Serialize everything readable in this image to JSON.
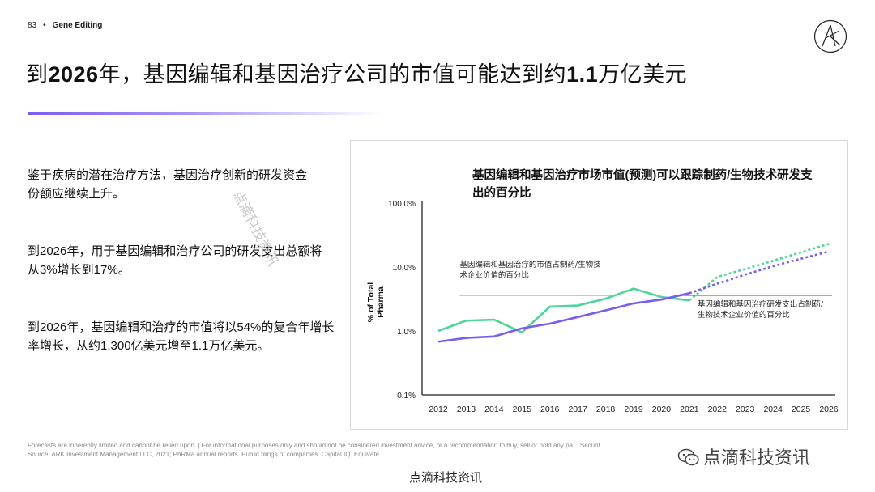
{
  "header": {
    "page_number": "83",
    "separator": "•",
    "section": "Gene Editing"
  },
  "title": {
    "prefix": "到",
    "year": "2026",
    "middle": "年，基因编辑和基因治疗公司的市值可能达到约",
    "amount": "1.1",
    "suffix": "万亿美元"
  },
  "paragraphs": [
    "鉴于疾病的潜在治疗方法，基因治疗创新的研发资金份额应继续上升。",
    "到2026年，用于基因编辑和治疗公司的研发支出总额将从3%增长到17%。",
    "到2026年，基因编辑和治疗的市值将以54%的复合年增长率增长，从约1,300亿美元增至1.1万亿美元。"
  ],
  "colors": {
    "accent": "#7b5cf0",
    "market_cap_series": "#4fd49a",
    "rd_series": "#7b5cf0"
  },
  "chart_data": {
    "type": "line",
    "title": "基因编辑和基因治疗市场市值(预测)可以跟踪制药/生物技术研发支出的百分比",
    "ylabel": "% of Total Pharma",
    "yscale": "log",
    "ylim": [
      0.1,
      100
    ],
    "yticks": [
      {
        "value": 100,
        "label": "100.0%"
      },
      {
        "value": 10,
        "label": "10.0%"
      },
      {
        "value": 1,
        "label": "1.0%"
      },
      {
        "value": 0.1,
        "label": "0.1%"
      }
    ],
    "x": [
      2012,
      2013,
      2014,
      2015,
      2016,
      2017,
      2018,
      2019,
      2020,
      2021,
      2022,
      2023,
      2024,
      2025,
      2026
    ],
    "forecast_start": 2021,
    "series": [
      {
        "name": "基因编辑和基因治疗的市值占制药/生物技术企业价值的百分比",
        "color": "#4fd49a",
        "values": [
          1.0,
          1.45,
          1.5,
          0.95,
          2.4,
          2.5,
          3.2,
          4.6,
          3.4,
          3.0,
          7.0,
          9.3,
          12.5,
          17.0,
          23.0
        ]
      },
      {
        "name": "基因编辑和基因治疗研发支出占制药/生物技术企业价值的百分比",
        "color": "#7b5cf0",
        "values": [
          0.68,
          0.78,
          0.82,
          1.1,
          1.3,
          1.65,
          2.1,
          2.7,
          3.1,
          3.9,
          5.5,
          7.6,
          10.3,
          13.5,
          17.5
        ]
      }
    ],
    "annotations": [
      "基因编辑和基因治疗的市值占制药/生物技术企业价值的百分比",
      "基因编辑和基因治疗研发支出占制药/生物技术企业价值的百分比"
    ]
  },
  "footer": {
    "line1": "Forecasts are inherently limited and cannot be relied upon. | For informational purposes only and should not be considered investment advice, or a recommendation to buy, sell or hold any pa... Securit...",
    "line2": "Source: ARK Investment Management LLC, 2021; PhRMa annual reports. Public filings of companies. Capital IQ. Equivate."
  },
  "watermarks": {
    "diagonal": "点滴科技资讯",
    "right": "点滴科技资讯",
    "bottom": "点滴科技资讯"
  }
}
